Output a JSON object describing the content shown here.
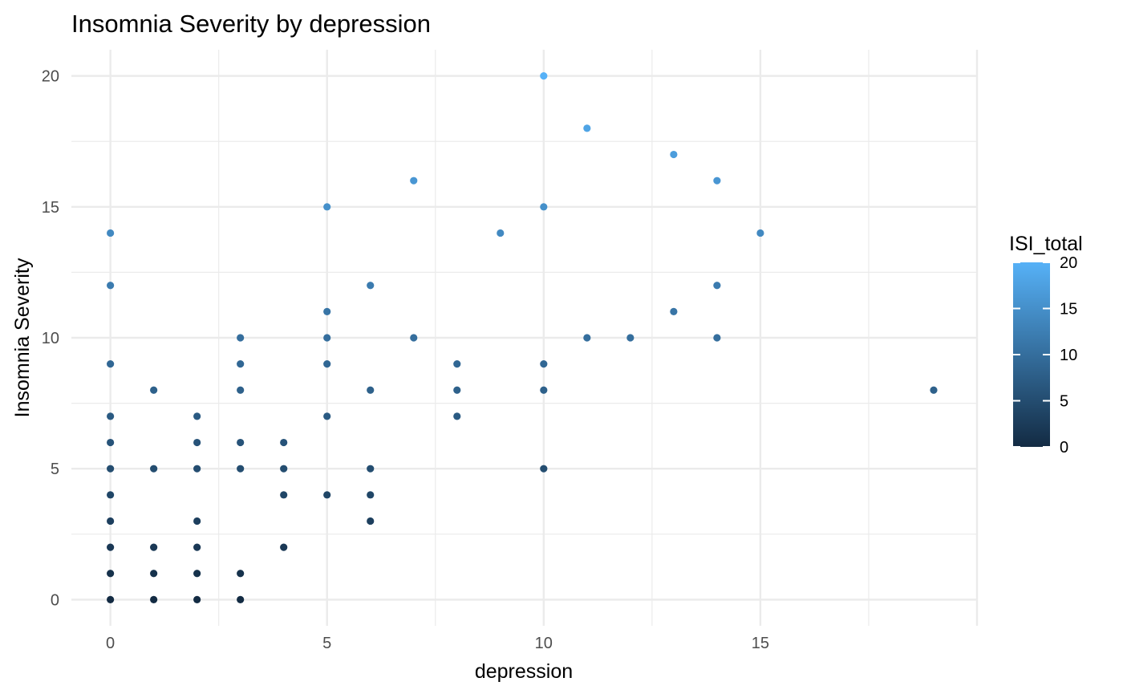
{
  "chart_data": {
    "type": "scatter",
    "title": "Insomnia Severity by depression",
    "xlabel": "depression",
    "ylabel": "Insomnia Severity",
    "xlim": [
      -0.9,
      20.0
    ],
    "ylim": [
      -1.0,
      21.0
    ],
    "x_ticks": [
      0,
      5,
      10,
      15
    ],
    "y_ticks": [
      0,
      5,
      10,
      15,
      20
    ],
    "grid": true,
    "legend": {
      "title": "ISI_total",
      "type": "colorbar",
      "position": "right",
      "min": 0,
      "max": 20,
      "ticks": [
        0,
        5,
        10,
        15,
        20
      ],
      "color_low": "#132B43",
      "color_high": "#56B1F7"
    },
    "points": [
      [
        0,
        0
      ],
      [
        0,
        1
      ],
      [
        0,
        2
      ],
      [
        0,
        3
      ],
      [
        0,
        4
      ],
      [
        0,
        5
      ],
      [
        0,
        6
      ],
      [
        0,
        7
      ],
      [
        0,
        9
      ],
      [
        0,
        12
      ],
      [
        0,
        14
      ],
      [
        1,
        0
      ],
      [
        1,
        1
      ],
      [
        1,
        2
      ],
      [
        1,
        5
      ],
      [
        1,
        8
      ],
      [
        2,
        0
      ],
      [
        2,
        1
      ],
      [
        2,
        2
      ],
      [
        2,
        3
      ],
      [
        2,
        5
      ],
      [
        2,
        6
      ],
      [
        2,
        7
      ],
      [
        3,
        0
      ],
      [
        3,
        1
      ],
      [
        3,
        5
      ],
      [
        3,
        6
      ],
      [
        3,
        8
      ],
      [
        3,
        9
      ],
      [
        3,
        10
      ],
      [
        4,
        2
      ],
      [
        4,
        4
      ],
      [
        4,
        5
      ],
      [
        4,
        6
      ],
      [
        5,
        4
      ],
      [
        5,
        7
      ],
      [
        5,
        9
      ],
      [
        5,
        10
      ],
      [
        5,
        11
      ],
      [
        5,
        15
      ],
      [
        6,
        3
      ],
      [
        6,
        4
      ],
      [
        6,
        5
      ],
      [
        6,
        8
      ],
      [
        6,
        12
      ],
      [
        7,
        10
      ],
      [
        7,
        16
      ],
      [
        8,
        7
      ],
      [
        8,
        8
      ],
      [
        8,
        9
      ],
      [
        9,
        14
      ],
      [
        10,
        5
      ],
      [
        10,
        8
      ],
      [
        10,
        9
      ],
      [
        10,
        15
      ],
      [
        10,
        20
      ],
      [
        11,
        10
      ],
      [
        11,
        18
      ],
      [
        12,
        10
      ],
      [
        13,
        11
      ],
      [
        13,
        17
      ],
      [
        14,
        10
      ],
      [
        14,
        12
      ],
      [
        14,
        16
      ],
      [
        15,
        14
      ],
      [
        19,
        8
      ]
    ]
  }
}
